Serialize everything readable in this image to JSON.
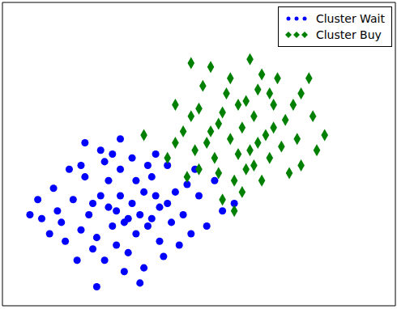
{
  "chart_data": {
    "type": "scatter",
    "xlim": [
      0,
      10
    ],
    "ylim": [
      0,
      8
    ],
    "xticks": [],
    "yticks": [],
    "tick_labels": false,
    "grid": false,
    "legend": "upper right",
    "series": [
      {
        "name": "Cluster Wait",
        "color": "#0000ff",
        "marker": "circle",
        "x": [
          3.3,
          2.9,
          3.6,
          3.1,
          2.5,
          4.0,
          3.8,
          2.2,
          3.4,
          2.7,
          4.4,
          1.8,
          3.0,
          3.7,
          2.4,
          4.6,
          1.5,
          3.2,
          2.1,
          4.2,
          0.7,
          1.0,
          5.0,
          5.4,
          3.5,
          2.4,
          2.8,
          2.1,
          1.9,
          4.1,
          4.8,
          3.9,
          1.3,
          2.6,
          3.6,
          4.9,
          5.6,
          2.0,
          3.0,
          3.5,
          2.8,
          3.9,
          2.3,
          4.3,
          1.6,
          3.3,
          2.6,
          4.5,
          1.2,
          3.1,
          5.2,
          2.0,
          4.7,
          3.4,
          2.9,
          1.7,
          4.0,
          3.7,
          0.9,
          5.9,
          2.3,
          3.2,
          2.7,
          3.8,
          1.4,
          4.2,
          3.0,
          2.5
        ],
        "values": [
          2.7,
          2.5,
          3.0,
          2.2,
          2.9,
          2.6,
          3.4,
          2.4,
          1.9,
          3.3,
          3.0,
          2.8,
          3.6,
          2.1,
          1.8,
          2.4,
          2.2,
          1.4,
          3.4,
          3.7,
          2.4,
          2.3,
          2.9,
          3.3,
          0.6,
          0.5,
          4.0,
          4.3,
          1.2,
          1.3,
          1.9,
          4.0,
          3.1,
          1.2,
          1.0,
          3.6,
          2.5,
          2.0,
          2.9,
          2.4,
          2.1,
          2.9,
          2.7,
          2.2,
          1.7,
          3.9,
          3.8,
          1.6,
          1.9,
          0.9,
          2.1,
          3.7,
          3.2,
          3.3,
          1.6,
          3.6,
          1.7,
          3.7,
          2.8,
          2.7,
          1.5,
          2.3,
          2.6,
          2.3,
          2.5,
          2.7,
          4.4,
          4.1
        ]
      },
      {
        "name": "Cluster Buy",
        "color": "#008000",
        "marker": "diamond",
        "x": [
          6.1,
          5.8,
          6.4,
          6.0,
          5.5,
          6.7,
          6.3,
          5.7,
          6.9,
          5.2,
          7.2,
          6.5,
          5.4,
          6.8,
          4.8,
          7.5,
          6.2,
          5.9,
          7.6,
          4.6,
          3.6,
          4.2,
          8.2,
          7.9,
          4.8,
          5.3,
          6.6,
          5.1,
          7.3,
          5.6,
          5.9,
          6.6,
          4.7,
          7.0,
          7.8,
          6.3,
          5.0,
          6.0,
          6.9,
          5.6,
          6.2,
          6.5,
          5.3,
          7.1,
          4.4,
          5.8,
          7.4,
          4.9,
          6.4,
          5.5,
          8.0,
          6.8,
          5.0,
          6.1,
          4.4,
          7.6
        ],
        "values": [
          4.7,
          4.4,
          5.0,
          5.3,
          4.8,
          4.5,
          4.1,
          5.6,
          5.3,
          4.3,
          4.9,
          5.7,
          3.9,
          3.9,
          5.0,
          4.4,
          3.6,
          3.3,
          5.6,
          4.6,
          4.5,
          3.9,
          4.5,
          5.0,
          6.4,
          6.3,
          6.1,
          5.8,
          3.5,
          2.8,
          2.5,
          3.3,
          3.4,
          6.0,
          6.0,
          6.5,
          3.6,
          4.0,
          4.7,
          5.1,
          5.4,
          4.3,
          4.6,
          4.2,
          5.3,
          6.0,
          5.3,
          4.1,
          3.7,
          3.5,
          4.1,
          5.6,
          5.2,
          3.0,
          4.3,
          3.7
        ]
      }
    ]
  }
}
